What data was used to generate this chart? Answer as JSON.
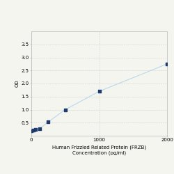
{
  "x_values": [
    0,
    31.25,
    62.5,
    125,
    250,
    500,
    1000,
    2000
  ],
  "y_values": [
    0.179,
    0.202,
    0.232,
    0.272,
    0.53,
    1.0,
    1.7,
    2.75
  ],
  "line_color": "#b8d8ea",
  "marker_color": "#1f3a6e",
  "marker_size": 9,
  "xlabel_line1": "Human Frizzled Related Protein (FRZB)",
  "xlabel_line2": "Concentration (pg/ml)",
  "ylabel": "OD",
  "xlim": [
    0,
    2000
  ],
  "ylim": [
    0,
    4.0
  ],
  "yticks": [
    0.5,
    1.0,
    1.5,
    2.0,
    2.5,
    3.0,
    3.5
  ],
  "xticks": [
    0,
    1000,
    2000
  ],
  "grid_color": "#d0d0d0",
  "background_color": "#f5f5f0",
  "axis_fontsize": 5,
  "tick_fontsize": 5,
  "ylabel_fontsize": 5
}
